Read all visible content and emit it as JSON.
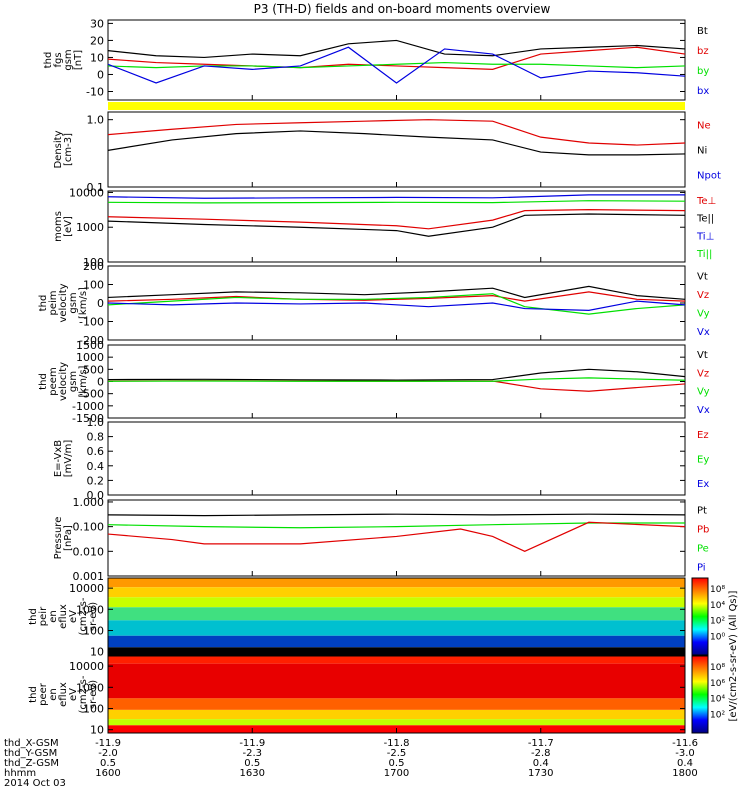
{
  "title": "P3 (TH-D) fields and on-board moments overview",
  "colors": {
    "black": "#000000",
    "red": "#e00000",
    "green": "#00e000",
    "blue": "#0000e0",
    "yellow": "#ffff00"
  },
  "chart_data": [
    {
      "type": "line",
      "ylabel": [
        "thd",
        "fgs",
        "gsm",
        "[nT]"
      ],
      "yticks": [
        "30",
        "20",
        "10",
        "0",
        "-10"
      ],
      "ylim": [
        -15,
        32
      ],
      "legend": [
        {
          "text": "Bt",
          "color": "black"
        },
        {
          "text": "bz",
          "color": "red"
        },
        {
          "text": "by",
          "color": "green"
        },
        {
          "text": "bx",
          "color": "blue"
        }
      ],
      "series": [
        {
          "name": "Bt",
          "color": "black",
          "x": [
            0,
            15,
            30,
            45,
            60,
            75,
            90,
            105,
            120,
            135,
            150,
            165,
            180
          ],
          "values": [
            14,
            11,
            10,
            12,
            11,
            18,
            20,
            12,
            11,
            15,
            16,
            17,
            15
          ]
        },
        {
          "name": "bz",
          "color": "red",
          "x": [
            0,
            15,
            30,
            45,
            60,
            75,
            90,
            105,
            120,
            135,
            150,
            165,
            180
          ],
          "values": [
            9,
            7,
            6,
            5,
            4,
            6,
            5,
            4,
            3,
            12,
            14,
            16,
            12
          ]
        },
        {
          "name": "by",
          "color": "green",
          "x": [
            0,
            15,
            30,
            45,
            60,
            75,
            90,
            105,
            120,
            135,
            150,
            165,
            180
          ],
          "values": [
            5,
            4,
            5,
            5,
            4,
            5,
            6,
            7,
            6,
            6,
            5,
            4,
            5
          ]
        },
        {
          "name": "bx",
          "color": "blue",
          "x": [
            0,
            15,
            30,
            45,
            60,
            75,
            90,
            105,
            120,
            135,
            150,
            165,
            180
          ],
          "values": [
            6,
            -5,
            5,
            3,
            5,
            16,
            -5,
            15,
            12,
            -2,
            2,
            1,
            -1
          ]
        }
      ]
    },
    {
      "type": "line",
      "yscale": "log",
      "ylabel": [
        "Density",
        "[cm-3]"
      ],
      "yticks": [
        "1.0",
        "0.1"
      ],
      "ylim": [
        0.1,
        1.3
      ],
      "legend": [
        {
          "text": "Ne",
          "color": "red"
        },
        {
          "text": "Ni",
          "color": "black"
        },
        {
          "text": "Npot",
          "color": "blue"
        }
      ],
      "series": [
        {
          "name": "Ne",
          "color": "red",
          "x": [
            0,
            20,
            40,
            60,
            80,
            100,
            120,
            135,
            150,
            165,
            180
          ],
          "values": [
            0.6,
            0.72,
            0.85,
            0.9,
            0.95,
            1.0,
            0.95,
            0.55,
            0.45,
            0.42,
            0.45
          ]
        },
        {
          "name": "Ni",
          "color": "black",
          "x": [
            0,
            20,
            40,
            60,
            80,
            100,
            120,
            135,
            150,
            165,
            180
          ],
          "values": [
            0.35,
            0.5,
            0.62,
            0.68,
            0.62,
            0.55,
            0.5,
            0.33,
            0.3,
            0.3,
            0.31
          ]
        }
      ]
    },
    {
      "type": "line",
      "yscale": "log",
      "ylabel": [
        "moms",
        "[eV]"
      ],
      "yticks": [
        "10000",
        "1000",
        "100"
      ],
      "ylim": [
        100,
        11000
      ],
      "legend": [
        {
          "text": "Te⊥",
          "color": "red"
        },
        {
          "text": "Te||",
          "color": "black"
        },
        {
          "text": "Ti⊥",
          "color": "blue"
        },
        {
          "text": "Ti||",
          "color": "green"
        }
      ],
      "series": [
        {
          "name": "Ti⊥",
          "color": "blue",
          "x": [
            0,
            30,
            60,
            90,
            120,
            150,
            180
          ],
          "values": [
            7500,
            6800,
            7000,
            7200,
            7000,
            8500,
            8500
          ]
        },
        {
          "name": "Ti||",
          "color": "green",
          "x": [
            0,
            30,
            60,
            90,
            120,
            150,
            180
          ],
          "values": [
            5200,
            5000,
            5100,
            5200,
            5100,
            5800,
            5600
          ]
        },
        {
          "name": "Te⊥",
          "color": "red",
          "x": [
            0,
            30,
            60,
            90,
            100,
            120,
            130,
            150,
            180
          ],
          "values": [
            2000,
            1700,
            1400,
            1100,
            900,
            1600,
            3000,
            3200,
            3000
          ]
        },
        {
          "name": "Te||",
          "color": "black",
          "x": [
            0,
            30,
            60,
            90,
            100,
            120,
            130,
            150,
            180
          ],
          "values": [
            1500,
            1200,
            1000,
            800,
            550,
            1000,
            2200,
            2400,
            2200
          ]
        }
      ]
    },
    {
      "type": "line",
      "ylabel": [
        "thd",
        "peim",
        "velocity",
        "gsm",
        "[km/s]"
      ],
      "yticks": [
        "200",
        "100",
        "0",
        "-100",
        "-200"
      ],
      "ylim": [
        -200,
        200
      ],
      "legend": [
        {
          "text": "Vt",
          "color": "black"
        },
        {
          "text": "Vz",
          "color": "red"
        },
        {
          "text": "Vy",
          "color": "green"
        },
        {
          "text": "Vx",
          "color": "blue"
        }
      ],
      "series": [
        {
          "name": "Vt",
          "color": "black",
          "x": [
            0,
            20,
            40,
            60,
            80,
            100,
            120,
            130,
            150,
            165,
            180
          ],
          "values": [
            30,
            45,
            60,
            55,
            45,
            60,
            80,
            30,
            90,
            40,
            20
          ]
        },
        {
          "name": "Vz",
          "color": "red",
          "x": [
            0,
            20,
            40,
            60,
            80,
            100,
            120,
            130,
            150,
            165,
            180
          ],
          "values": [
            10,
            20,
            35,
            20,
            15,
            25,
            40,
            10,
            60,
            20,
            10
          ]
        },
        {
          "name": "Vy",
          "color": "green",
          "x": [
            0,
            20,
            40,
            60,
            80,
            100,
            120,
            130,
            150,
            165,
            180
          ],
          "values": [
            -10,
            10,
            30,
            20,
            20,
            30,
            50,
            -20,
            -60,
            -30,
            -10
          ]
        },
        {
          "name": "Vx",
          "color": "blue",
          "x": [
            0,
            20,
            40,
            60,
            80,
            100,
            120,
            130,
            150,
            165,
            180
          ],
          "values": [
            0,
            -10,
            0,
            -5,
            0,
            -20,
            0,
            -30,
            -40,
            10,
            -10
          ]
        }
      ]
    },
    {
      "type": "line",
      "ylabel": [
        "thd",
        "peem",
        "velocity",
        "gsm",
        "[km/s]"
      ],
      "yticks": [
        "1500",
        "1000",
        "500",
        "0",
        "-500",
        "-1000",
        "-1500"
      ],
      "ylim": [
        -1500,
        1500
      ],
      "legend": [
        {
          "text": "Vt",
          "color": "black"
        },
        {
          "text": "Vz",
          "color": "red"
        },
        {
          "text": "Vy",
          "color": "green"
        },
        {
          "text": "Vx",
          "color": "blue"
        }
      ],
      "series": [
        {
          "name": "Vt",
          "color": "black",
          "x": [
            0,
            30,
            60,
            90,
            120,
            135,
            150,
            165,
            180
          ],
          "values": [
            80,
            90,
            70,
            60,
            80,
            350,
            500,
            400,
            200
          ]
        },
        {
          "name": "Vz",
          "color": "red",
          "x": [
            0,
            30,
            60,
            90,
            120,
            135,
            150,
            165,
            180
          ],
          "values": [
            20,
            30,
            20,
            10,
            20,
            -300,
            -400,
            -250,
            -100
          ]
        },
        {
          "name": "Vy",
          "color": "green",
          "x": [
            0,
            30,
            60,
            90,
            120,
            135,
            150,
            165,
            180
          ],
          "values": [
            10,
            20,
            10,
            10,
            10,
            100,
            150,
            100,
            50
          ]
        }
      ]
    },
    {
      "type": "line",
      "ylabel": [
        "E=-VxB",
        "[mV/m]"
      ],
      "yticks": [
        "1.0",
        "0.8",
        "0.6",
        "0.4",
        "0.2",
        "0.0"
      ],
      "ylim": [
        0,
        1
      ],
      "legend": [
        {
          "text": "Ez",
          "color": "red"
        },
        {
          "text": "Ey",
          "color": "green"
        },
        {
          "text": "Ex",
          "color": "blue"
        }
      ],
      "series": []
    },
    {
      "type": "line",
      "yscale": "log",
      "ylabel": [
        "Pressure",
        "[nPa]"
      ],
      "yticks": [
        "1.000",
        "0.100",
        "0.010",
        "0.001"
      ],
      "ylim": [
        0.001,
        1.2
      ],
      "legend": [
        {
          "text": "Pt",
          "color": "black"
        },
        {
          "text": "Pb",
          "color": "red"
        },
        {
          "text": "Pe",
          "color": "green"
        },
        {
          "text": "Pi",
          "color": "blue"
        }
      ],
      "series": [
        {
          "name": "Pt",
          "color": "black",
          "x": [
            0,
            30,
            60,
            90,
            120,
            150,
            180
          ],
          "values": [
            0.3,
            0.28,
            0.3,
            0.32,
            0.3,
            0.32,
            0.3
          ]
        },
        {
          "name": "Pe",
          "color": "green",
          "x": [
            0,
            30,
            60,
            90,
            120,
            150,
            180
          ],
          "values": [
            0.12,
            0.1,
            0.09,
            0.1,
            0.12,
            0.14,
            0.14
          ]
        },
        {
          "name": "Pb",
          "color": "red",
          "x": [
            0,
            20,
            30,
            60,
            90,
            110,
            120,
            130,
            150,
            180
          ],
          "values": [
            0.05,
            0.03,
            0.02,
            0.02,
            0.04,
            0.08,
            0.04,
            0.01,
            0.15,
            0.1
          ]
        }
      ]
    },
    {
      "type": "heatmap",
      "yscale": "log",
      "ylabel": [
        "thd",
        "peir",
        "en",
        "eflux",
        "eV",
        "(cm2-s-",
        "sr-eV)"
      ],
      "yticks": [
        "10000",
        "1000",
        "100",
        "10"
      ],
      "ylim": [
        7,
        30000
      ]
    },
    {
      "type": "heatmap",
      "yscale": "log",
      "ylabel": [
        "thd",
        "peer",
        "en",
        "eflux",
        "eV",
        "(cm2-s-",
        "sr-eV)"
      ],
      "yticks": [
        "10000",
        "1000",
        "100",
        "10"
      ],
      "ylim": [
        7,
        30000
      ]
    }
  ],
  "colorbar": {
    "label": "[eV/(cm2-s-sr-eV) (All Qs)]",
    "ticks_top": [
      "10⁸",
      "10⁴",
      "10²",
      "10⁰"
    ],
    "ticks_bottom": [
      "10⁸",
      "10⁶",
      "10⁴",
      "10²"
    ]
  },
  "xaxis": {
    "row_labels": [
      "thd_X-GSM",
      "thd_Y-GSM",
      "thd_Z-GSM",
      "hhmm",
      "2014 Oct 03"
    ],
    "columns": [
      [
        "-11.9",
        "-2.0",
        "0.5",
        "1600"
      ],
      [
        "-11.9",
        "-2.3",
        "0.5",
        "1630"
      ],
      [
        "-11.8",
        "-2.5",
        "0.5",
        "1700"
      ],
      [
        "-11.7",
        "-2.8",
        "0.4",
        "1730"
      ],
      [
        "-11.6",
        "-3.0",
        "0.4",
        "1800"
      ]
    ]
  }
}
